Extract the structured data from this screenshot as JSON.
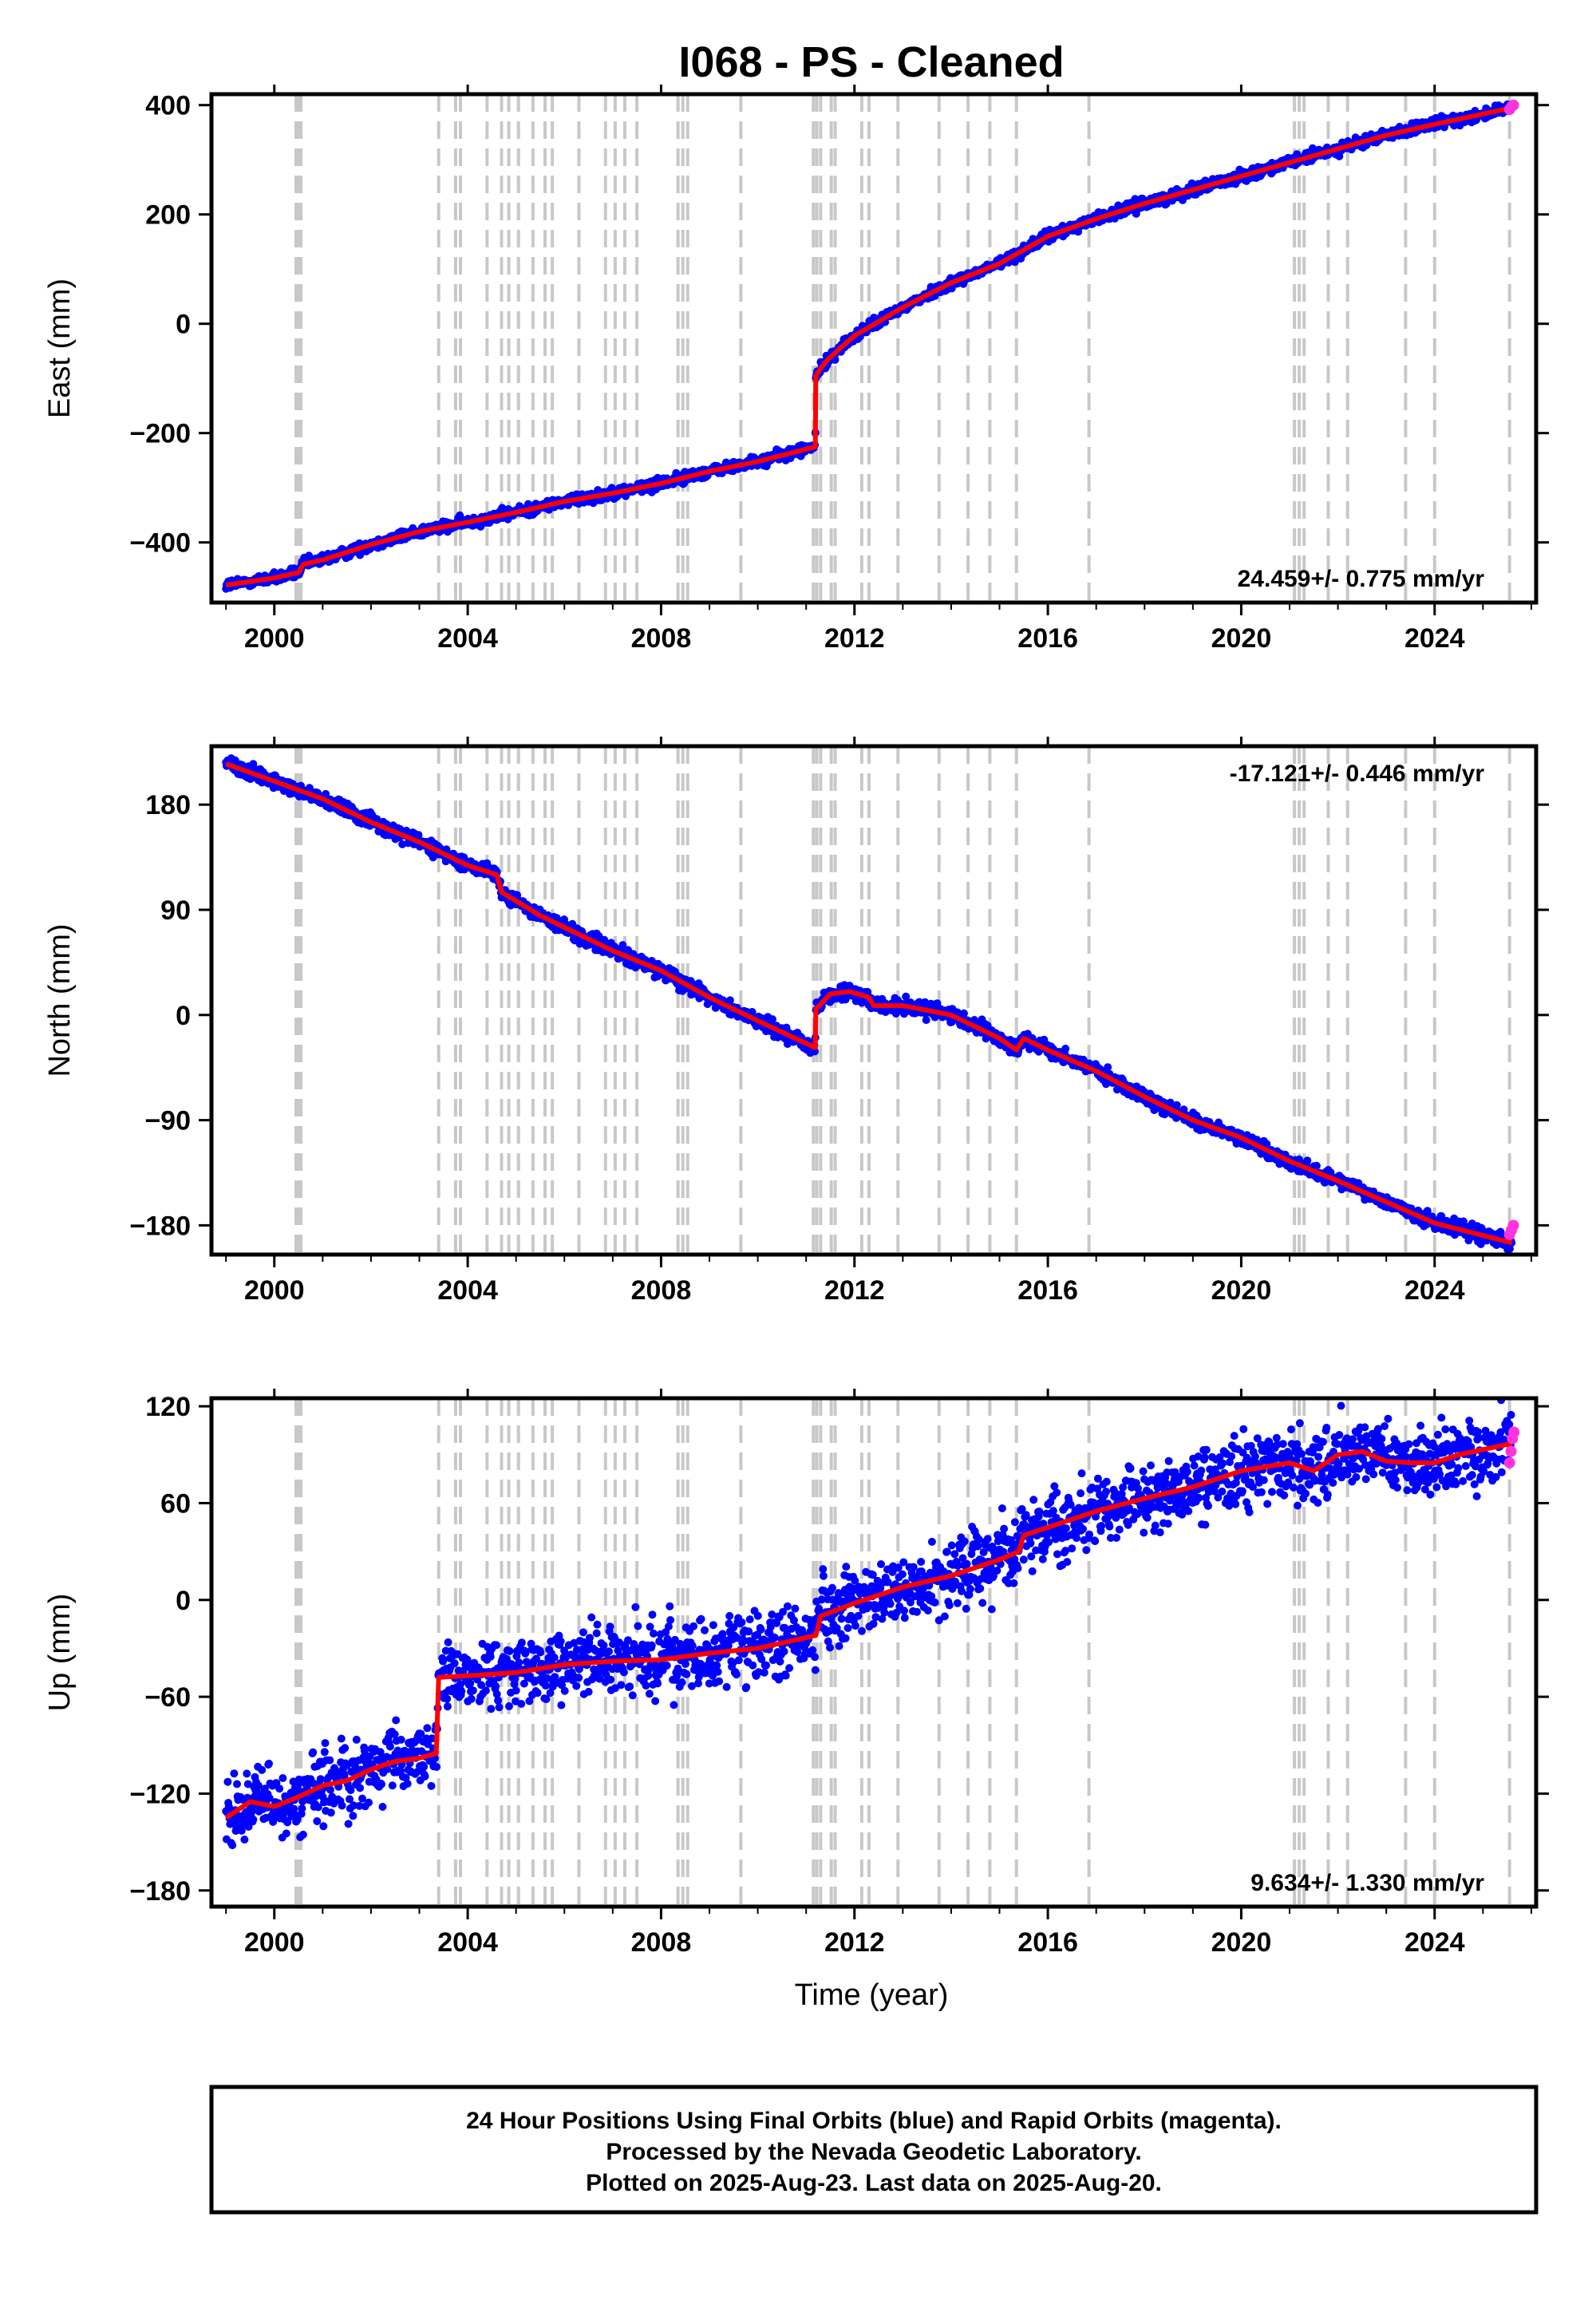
{
  "title": "I068  - PS - Cleaned",
  "x_axis_label": "Time (year)",
  "colors": {
    "final": "#0000ff",
    "rapid": "#ff33dd",
    "model": "#ff0000",
    "event": "#c8c8c8",
    "frame": "#000000"
  },
  "events": [
    2000.45,
    2000.5,
    2000.55,
    2003.4,
    2003.75,
    2003.85,
    2004.4,
    2004.7,
    2004.85,
    2005.05,
    2005.35,
    2005.6,
    2005.75,
    2006.3,
    2006.85,
    2007.05,
    2007.25,
    2007.5,
    2008.35,
    2008.45,
    2008.55,
    2009.65,
    2011.15,
    2011.22,
    2011.3,
    2011.52,
    2011.6,
    2012.15,
    2012.3,
    2012.9,
    2013.75,
    2014.35,
    2014.8,
    2015.35,
    2016.85,
    2021.1,
    2021.2,
    2021.3,
    2021.8,
    2022.2,
    2023.4,
    2024.0,
    2025.55
  ],
  "footer": {
    "line1": "24 Hour Positions Using Final Orbits (blue) and Rapid Orbits (magenta).",
    "line2": "Processed by the Nevada Geodetic Laboratory.",
    "line3": "Plotted on 2025-Aug-23. Last data on 2025-Aug-20."
  },
  "chart_data": [
    {
      "type": "scatter",
      "name": "east",
      "ylabel": "East (mm)",
      "rate_label": "24.459+/- 0.775 mm/yr",
      "rate_position": "bottom-right",
      "xlim": [
        1998.7,
        2026.1
      ],
      "ylim": [
        -510,
        420
      ],
      "xticks": [
        2000,
        2004,
        2008,
        2012,
        2016,
        2020,
        2024
      ],
      "xtick_labels": [
        "2000",
        "2004",
        "2008",
        "2012",
        "2016",
        "2020",
        "2024"
      ],
      "yticks": [
        -400,
        -200,
        0,
        200,
        400
      ],
      "ytick_labels": [
        "−400",
        "−200",
        "0",
        "200",
        "400"
      ],
      "scatter_sd": 5,
      "model_line": {
        "x": [
          1999.0,
          2000.0,
          2000.5,
          2000.6,
          2001.0,
          2002.0,
          2003.0,
          2004.0,
          2005.0,
          2006.0,
          2007.0,
          2008.0,
          2009.0,
          2010.0,
          2011.19,
          2011.2,
          2011.4,
          2011.7,
          2012.0,
          2013.0,
          2014.0,
          2015.0,
          2016.0,
          2017.0,
          2018.0,
          2019.0,
          2020.0,
          2021.0,
          2022.0,
          2023.0,
          2024.0,
          2025.6
        ],
        "y": [
          -478,
          -465,
          -455,
          -440,
          -432,
          -404,
          -380,
          -363,
          -345,
          -325,
          -310,
          -292,
          -270,
          -252,
          -225,
          -95,
          -70,
          -45,
          -22,
          30,
          75,
          110,
          160,
          192,
          220,
          245,
          270,
          295,
          320,
          345,
          365,
          395
        ]
      },
      "rapid_points": {
        "x": [
          2025.55,
          2025.59,
          2025.63
        ],
        "y": [
          392,
          397,
          400
        ]
      }
    },
    {
      "type": "scatter",
      "name": "north",
      "ylabel": "North (mm)",
      "rate_label": "-17.121+/- 0.446 mm/yr",
      "rate_position": "top-right",
      "xlim": [
        1998.7,
        2026.1
      ],
      "ylim": [
        -205,
        230
      ],
      "xticks": [
        2000,
        2004,
        2008,
        2012,
        2016,
        2020,
        2024
      ],
      "xtick_labels": [
        "2000",
        "2004",
        "2008",
        "2012",
        "2016",
        "2020",
        "2024"
      ],
      "yticks": [
        -180,
        -90,
        0,
        90,
        180
      ],
      "ytick_labels": [
        "−180",
        "−90",
        "0",
        "90",
        "180"
      ],
      "scatter_sd": 3,
      "model_line": {
        "x": [
          1999.0,
          2000.0,
          2001.0,
          2002.0,
          2003.0,
          2004.0,
          2004.6,
          2004.7,
          2005.5,
          2006.0,
          2007.0,
          2008.0,
          2009.0,
          2010.0,
          2011.19,
          2011.2,
          2011.5,
          2011.9,
          2012.3,
          2012.4,
          2013.0,
          2014.0,
          2015.0,
          2015.35,
          2015.5,
          2016.0,
          2017.0,
          2018.0,
          2019.0,
          2020.0,
          2021.0,
          2022.0,
          2023.0,
          2024.0,
          2025.6
        ],
        "y": [
          215,
          200,
          185,
          165,
          148,
          128,
          120,
          105,
          85,
          75,
          55,
          38,
          15,
          -5,
          -28,
          5,
          18,
          20,
          15,
          8,
          8,
          0,
          -20,
          -30,
          -20,
          -30,
          -48,
          -70,
          -90,
          -105,
          -125,
          -142,
          -160,
          -178,
          -195
        ]
      },
      "rapid_points": {
        "x": [
          2025.55,
          2025.59,
          2025.63
        ],
        "y": [
          -188,
          -184,
          -180
        ]
      }
    },
    {
      "type": "scatter",
      "name": "up",
      "ylabel": "Up (mm)",
      "rate_label": "9.634+/- 1.330 mm/yr",
      "rate_position": "bottom-right",
      "xlim": [
        1998.7,
        2026.1
      ],
      "ylim": [
        -190,
        125
      ],
      "xticks": [
        2000,
        2004,
        2008,
        2012,
        2016,
        2020,
        2024
      ],
      "xtick_labels": [
        "2000",
        "2004",
        "2008",
        "2012",
        "2016",
        "2020",
        "2024"
      ],
      "yticks": [
        -180,
        -120,
        -60,
        0,
        60,
        120
      ],
      "ytick_labels": [
        "−180",
        "−120",
        "−60",
        "0",
        "60",
        "120"
      ],
      "scatter_sd": 11,
      "model_line": {
        "x": [
          1999.0,
          1999.5,
          2000.0,
          2000.5,
          2001.0,
          2001.5,
          2002.0,
          2002.5,
          2003.0,
          2003.35,
          2003.4,
          2004.0,
          2005.0,
          2006.0,
          2007.0,
          2008.0,
          2009.0,
          2010.0,
          2011.2,
          2011.3,
          2012.0,
          2013.0,
          2014.0,
          2015.0,
          2015.4,
          2015.5,
          2016.0,
          2017.0,
          2018.0,
          2019.0,
          2020.0,
          2021.0,
          2021.5,
          2022.0,
          2022.5,
          2023.0,
          2023.5,
          2024.0,
          2024.5,
          2025.6
        ],
        "y": [
          -135,
          -125,
          -128,
          -122,
          -115,
          -112,
          -105,
          -100,
          -98,
          -95,
          -48,
          -47,
          -45,
          -40,
          -38,
          -37,
          -33,
          -30,
          -22,
          -10,
          -2,
          8,
          15,
          25,
          30,
          40,
          45,
          55,
          63,
          70,
          80,
          85,
          80,
          90,
          92,
          86,
          85,
          85,
          90,
          97
        ]
      },
      "rapid_points": {
        "x": [
          2025.55,
          2025.58,
          2025.61,
          2025.64
        ],
        "y": [
          85,
          92,
          100,
          104
        ]
      }
    }
  ]
}
